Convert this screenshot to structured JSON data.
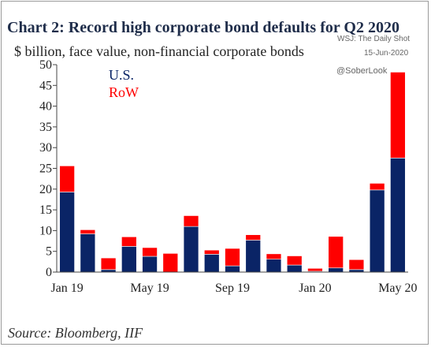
{
  "title": "Chart 2: Record high corporate bond defaults for Q2 2020",
  "subtitle": "$ billion, face value, non-financial corporate bonds",
  "credit": {
    "publisher": "WSJ: The Daily Shot",
    "date": "15-Jun-2020",
    "handle": "@SoberLook"
  },
  "source": "Source:  Bloomberg, IIF",
  "colors": {
    "us": "#0a2466",
    "row": "#ff0000"
  },
  "chart_data": {
    "type": "bar",
    "stacked": true,
    "categories": [
      "Jan 19",
      "Feb 19",
      "Mar 19",
      "Apr 19",
      "May 19",
      "Jun 19",
      "Jul 19",
      "Aug 19",
      "Sep 19",
      "Oct 19",
      "Nov 19",
      "Dec 19",
      "Jan 20",
      "Feb 20",
      "Mar 20",
      "Apr 20",
      "May 20"
    ],
    "x_tick_labels": [
      "Jan 19",
      "May 19",
      "Sep 19",
      "Jan 20",
      "May 20"
    ],
    "series": [
      {
        "name": "U.S.",
        "color": "#0a2466",
        "values": [
          19.3,
          9.2,
          0.6,
          6.2,
          3.8,
          0.0,
          11.0,
          4.3,
          1.5,
          7.7,
          3.1,
          1.7,
          0.2,
          1.0,
          0.6,
          19.8,
          27.5
        ]
      },
      {
        "name": "RoW",
        "color": "#ff0000",
        "values": [
          6.3,
          1.0,
          2.8,
          2.3,
          2.1,
          4.5,
          2.6,
          1.0,
          4.2,
          1.3,
          1.3,
          2.2,
          0.7,
          7.6,
          2.4,
          1.6,
          20.7
        ]
      }
    ],
    "ylim": [
      0,
      50
    ],
    "yticks": [
      0,
      5,
      10,
      15,
      20,
      25,
      30,
      35,
      40,
      45,
      50
    ],
    "legend_position": "top-left",
    "grid": false
  }
}
